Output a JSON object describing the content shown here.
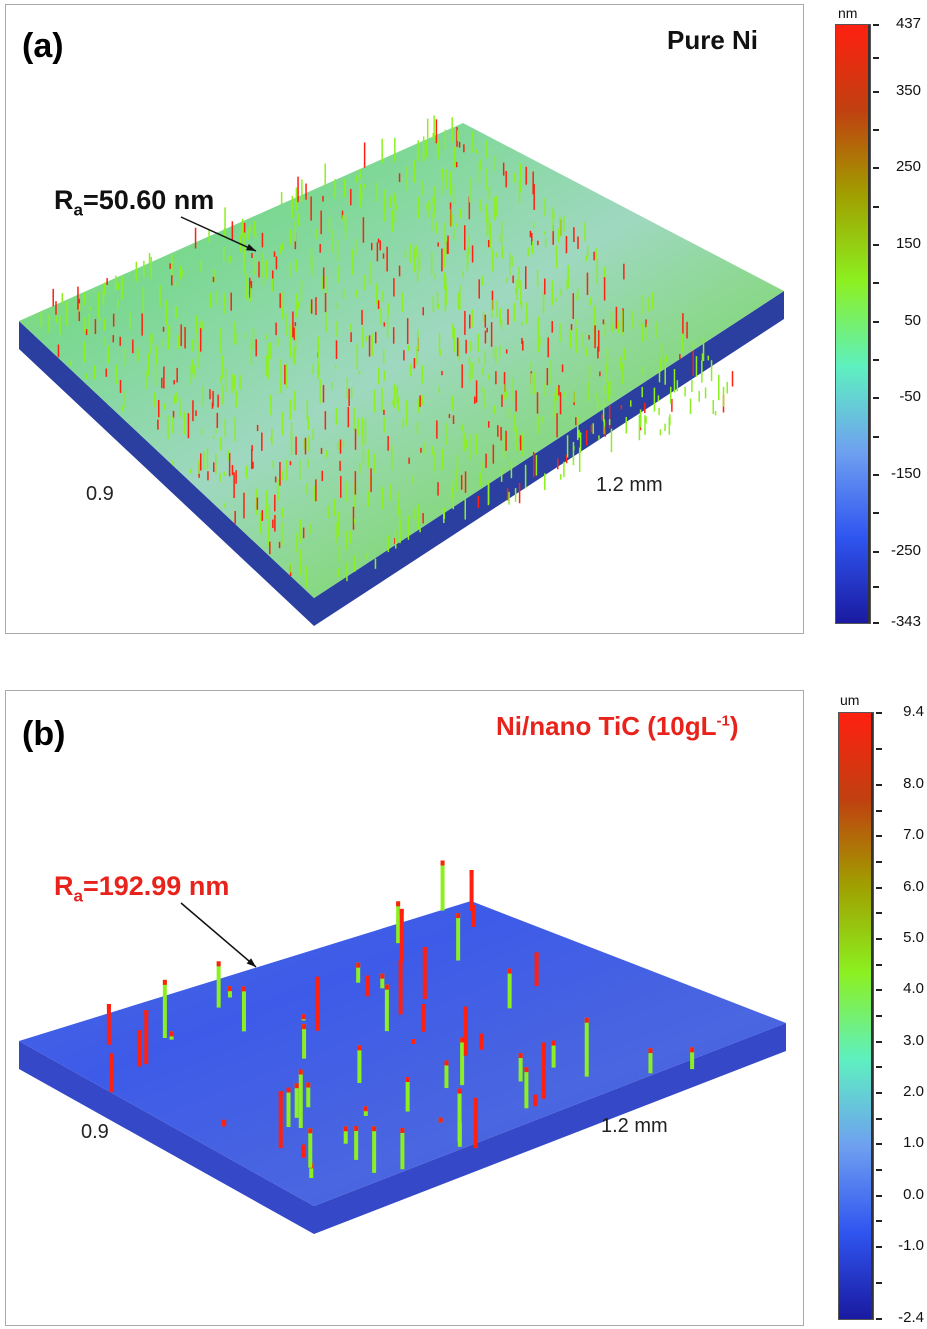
{
  "panels": [
    {
      "label": "(a)",
      "title": "Pure Ni",
      "title_color": "#111111",
      "roughness_prefix": "R",
      "roughness_sub": "a",
      "roughness_value": "=50.60 nm",
      "roughness_color": "#111111",
      "axis_short": "0.9",
      "axis_long": "1.2 mm"
    },
    {
      "label": "(b)",
      "title": "Ni/nano TiC (10gL",
      "title_sup": "-1",
      "title_end": ")",
      "title_color": "#e8231c",
      "roughness_prefix": "R",
      "roughness_sub": "a",
      "roughness_value": "=192.99 nm",
      "roughness_color": "#e8231c",
      "axis_short": "0.9",
      "axis_long": "1.2 mm"
    }
  ],
  "chart_data": [
    {
      "type": "heatmap",
      "title": "Pure Ni",
      "colorbar": {
        "unit": "nm",
        "min": -343,
        "max": 437,
        "ticks": [
          "437",
          "350",
          "250",
          "150",
          "50",
          "-50",
          "-150",
          "-250",
          "-343"
        ],
        "colors": [
          "#1a1aa0",
          "#2f55f0",
          "#6ea0f0",
          "#5ef0c0",
          "#8cf020",
          "#a0a000",
          "#c04010",
          "#ff2010"
        ]
      },
      "xlabel": "1.2 mm",
      "ylabel": "0.9",
      "annotation": "Ra=50.60 nm"
    },
    {
      "type": "heatmap",
      "title": "Ni/nano TiC (10gL-1)",
      "colorbar": {
        "unit": "um",
        "min": -2.4,
        "max": 9.4,
        "ticks": [
          "9.4",
          "8.0",
          "7.0",
          "6.0",
          "5.0",
          "4.0",
          "3.0",
          "2.0",
          "1.0",
          "0.0",
          "-1.0",
          "-2.4"
        ],
        "colors": [
          "#1a1aa0",
          "#2f55f0",
          "#6ea0f0",
          "#5ef0c0",
          "#8cf020",
          "#a0a000",
          "#c04010",
          "#ff2010"
        ]
      },
      "xlabel": "1.2 mm",
      "ylabel": "0.9",
      "annotation": "Ra=192.99 nm"
    }
  ]
}
